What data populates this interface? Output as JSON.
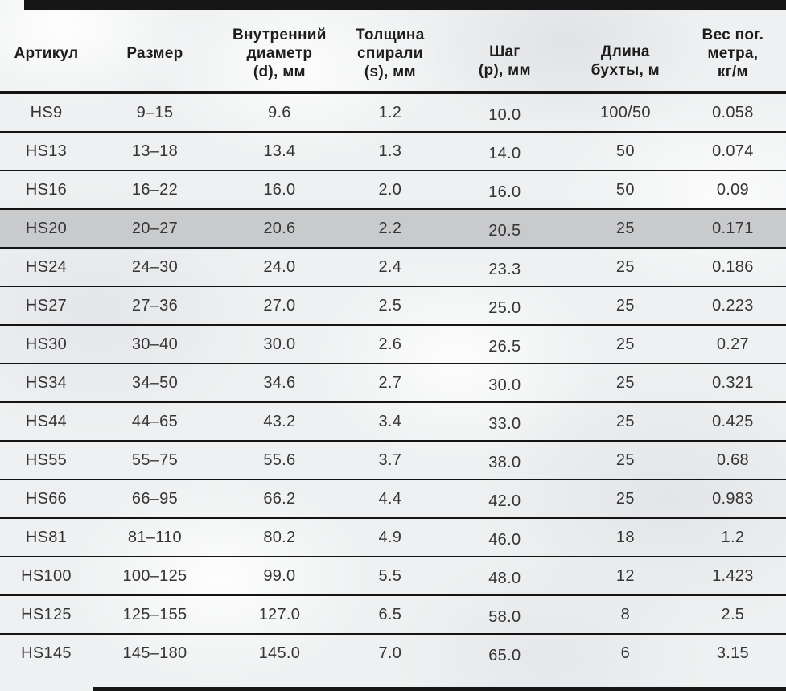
{
  "table": {
    "columns": [
      {
        "id": "article",
        "label": "Артикул"
      },
      {
        "id": "size",
        "label": "Размер"
      },
      {
        "id": "inner_diameter",
        "label": "Внутренний\nдиаметр\n(d), мм"
      },
      {
        "id": "spiral_thickness",
        "label": "Толщина\nспирали\n(s), мм"
      },
      {
        "id": "pitch",
        "label": "Шаг\n(р), мм"
      },
      {
        "id": "coil_length",
        "label": "Длина\nбухты, м"
      },
      {
        "id": "weight",
        "label": "Вес пог.\nметра,\nкг/м"
      }
    ],
    "rows": [
      {
        "cells": [
          "HS9",
          "9–15",
          "9.6",
          "1.2",
          "10.0",
          "100/50",
          "0.058"
        ],
        "highlighted": false
      },
      {
        "cells": [
          "HS13",
          "13–18",
          "13.4",
          "1.3",
          "14.0",
          "50",
          "0.074"
        ],
        "highlighted": false
      },
      {
        "cells": [
          "HS16",
          "16–22",
          "16.0",
          "2.0",
          "16.0",
          "50",
          "0.09"
        ],
        "highlighted": false
      },
      {
        "cells": [
          "HS20",
          "20–27",
          "20.6",
          "2.2",
          "20.5",
          "25",
          "0.171"
        ],
        "highlighted": true
      },
      {
        "cells": [
          "HS24",
          "24–30",
          "24.0",
          "2.4",
          "23.3",
          "25",
          "0.186"
        ],
        "highlighted": false
      },
      {
        "cells": [
          "HS27",
          "27–36",
          "27.0",
          "2.5",
          "25.0",
          "25",
          "0.223"
        ],
        "highlighted": false
      },
      {
        "cells": [
          "HS30",
          "30–40",
          "30.0",
          "2.6",
          "26.5",
          "25",
          "0.27"
        ],
        "highlighted": false
      },
      {
        "cells": [
          "HS34",
          "34–50",
          "34.6",
          "2.7",
          "30.0",
          "25",
          "0.321"
        ],
        "highlighted": false
      },
      {
        "cells": [
          "HS44",
          "44–65",
          "43.2",
          "3.4",
          "33.0",
          "25",
          "0.425"
        ],
        "highlighted": false
      },
      {
        "cells": [
          "HS55",
          "55–75",
          "55.6",
          "3.7",
          "38.0",
          "25",
          "0.68"
        ],
        "highlighted": false
      },
      {
        "cells": [
          "HS66",
          "66–95",
          "66.2",
          "4.4",
          "42.0",
          "25",
          "0.983"
        ],
        "highlighted": false
      },
      {
        "cells": [
          "HS81",
          "81–110",
          "80.2",
          "4.9",
          "46.0",
          "18",
          "1.2"
        ],
        "highlighted": false
      },
      {
        "cells": [
          "HS100",
          "100–125",
          "99.0",
          "5.5",
          "48.0",
          "12",
          "1.423"
        ],
        "highlighted": false
      },
      {
        "cells": [
          "HS125",
          "125–155",
          "127.0",
          "6.5",
          "58.0",
          "8",
          "2.5"
        ],
        "highlighted": false
      },
      {
        "cells": [
          "HS145",
          "145–180",
          "145.0",
          "7.0",
          "65.0",
          "6",
          "3.15"
        ],
        "highlighted": false
      }
    ],
    "colors": {
      "rule": "#161616",
      "row_separator": "#141414",
      "highlight_row_background": "#c9cacc",
      "header_text": "#1d1d1d",
      "cell_text": "#353535",
      "page_background": "#eef0f1"
    }
  }
}
